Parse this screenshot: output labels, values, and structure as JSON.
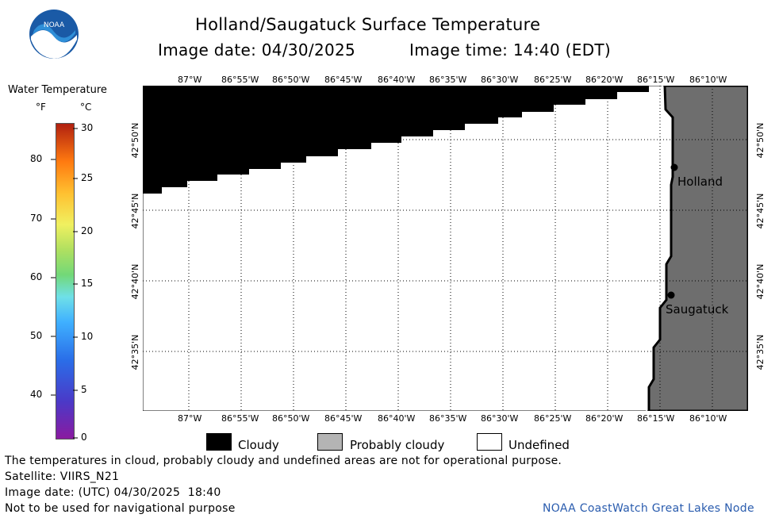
{
  "header": {
    "title": "Holland/Saugatuck Surface Temperature",
    "image_date": "Image date: 04/30/2025",
    "image_time": "Image time: 14:40 (EDT)",
    "logo_text": "NOAA"
  },
  "colorbar": {
    "title": "Water Temperature",
    "unit_f": "°F",
    "unit_c": "°C",
    "f_ticks": [
      "80",
      "70",
      "60",
      "50",
      "40"
    ],
    "c_ticks": [
      "30",
      "25",
      "20",
      "15",
      "10",
      "5",
      "0"
    ]
  },
  "map": {
    "lon_labels": [
      "87°W",
      "86°55'W",
      "86°50'W",
      "86°45'W",
      "86°40'W",
      "86°35'W",
      "86°30'W",
      "86°25'W",
      "86°20'W",
      "86°15'W",
      "86°10'W"
    ],
    "lat_labels": [
      "42°50'N",
      "42°45'N",
      "42°40'N",
      "42°35'N"
    ],
    "places": [
      {
        "name": "Holland",
        "lon": -86.2,
        "lat": 42.79
      },
      {
        "name": "Saugatuck",
        "lon": -86.21,
        "lat": 42.655
      }
    ],
    "colors": {
      "cloudy": "#000000",
      "land": "#6e6e6e",
      "undefined": "#ffffff"
    }
  },
  "legend": {
    "cloudy": "Cloudy",
    "probably_cloudy": "Probably cloudy",
    "undefined": "Undefined"
  },
  "footer": {
    "line1": "The temperatures in cloud, probably cloudy and undefined areas are not for operational purpose.",
    "line2": "Satellite: VIIRS_N21",
    "line3": "Image date: (UTC) 04/30/2025  18:40",
    "line4": "Not to be used for navigational purpose",
    "credit": "NOAA CoastWatch Great Lakes Node"
  }
}
